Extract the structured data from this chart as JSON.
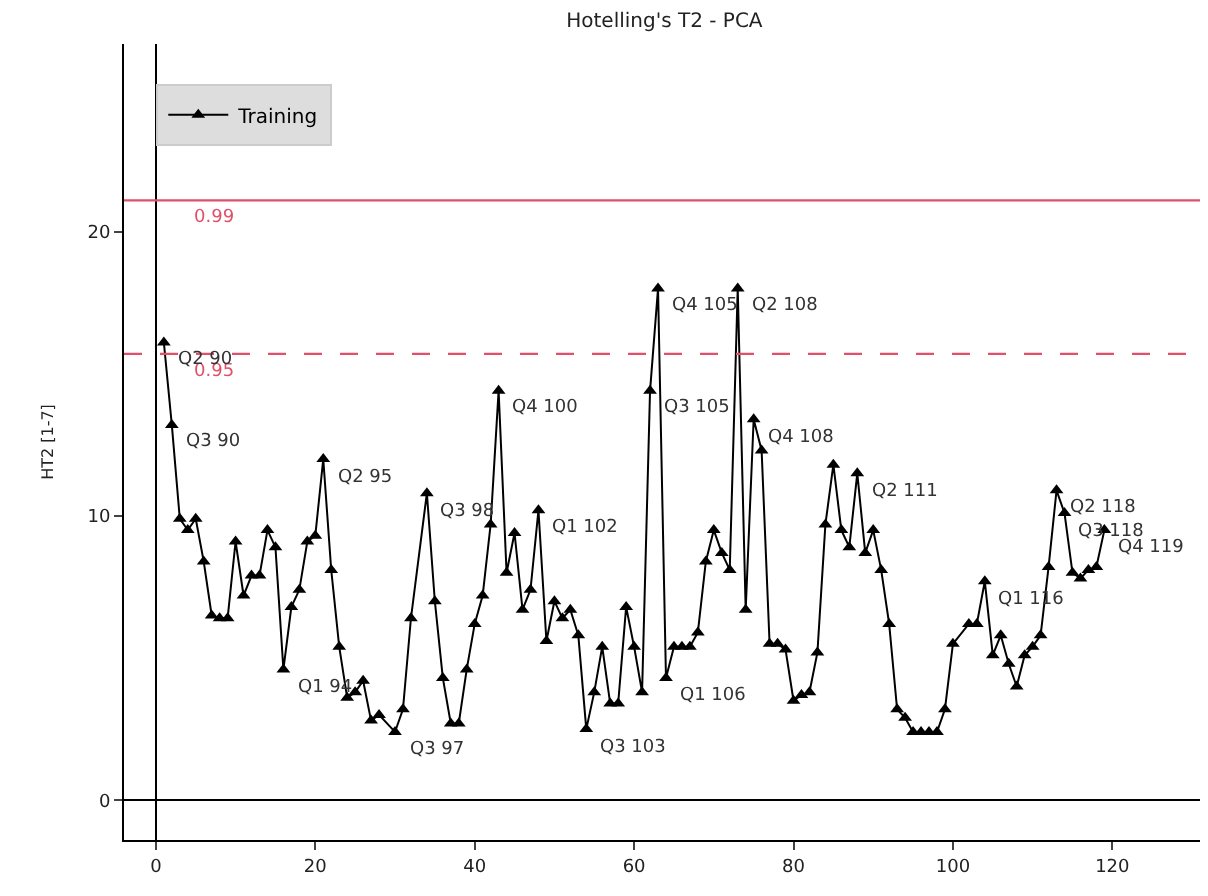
{
  "chart_data": {
    "type": "line",
    "title": "Hotelling's T2 - PCA",
    "ylabel": "HT2 [1-7]",
    "series": [
      {
        "name": "Training",
        "color": "#000000",
        "x": [
          1,
          2,
          3,
          4,
          5,
          6,
          7,
          8,
          9,
          10,
          11,
          12,
          13,
          14,
          15,
          16,
          17,
          18,
          19,
          20,
          21,
          22,
          23,
          24,
          25,
          26,
          27,
          28,
          30,
          31,
          32,
          34,
          35,
          36,
          37,
          38,
          39,
          40,
          41,
          42,
          43,
          44,
          45,
          46,
          47,
          48,
          49,
          50,
          51,
          52,
          53,
          54,
          55,
          56,
          57,
          58,
          59,
          60,
          61,
          62,
          63,
          64,
          65,
          66,
          67,
          68,
          69,
          70,
          71,
          72,
          73,
          74,
          75,
          76,
          77,
          78,
          79,
          80,
          81,
          82,
          83,
          84,
          85,
          86,
          87,
          88,
          89,
          90,
          91,
          92,
          93,
          94,
          95,
          96,
          97,
          98,
          99,
          100,
          102,
          103,
          104,
          105,
          106,
          107,
          108,
          109,
          110,
          111,
          112,
          113,
          114,
          115,
          116,
          117,
          118,
          119
        ],
        "values": [
          16.1,
          13.2,
          9.9,
          9.5,
          9.9,
          8.4,
          6.5,
          6.4,
          6.4,
          9.1,
          7.2,
          7.9,
          7.9,
          9.5,
          8.9,
          4.6,
          6.8,
          7.4,
          9.1,
          9.3,
          12.0,
          8.1,
          5.4,
          3.6,
          3.8,
          4.2,
          2.8,
          3.0,
          2.4,
          3.2,
          6.4,
          10.8,
          7.0,
          4.3,
          2.7,
          2.7,
          4.6,
          6.2,
          7.2,
          9.7,
          14.4,
          8.0,
          9.4,
          6.7,
          7.4,
          10.2,
          5.6,
          7.0,
          6.4,
          6.7,
          5.8,
          2.5,
          3.8,
          5.4,
          3.4,
          3.4,
          6.8,
          5.4,
          3.8,
          14.4,
          18.0,
          4.3,
          5.4,
          5.4,
          5.4,
          5.9,
          8.4,
          9.5,
          8.7,
          8.1,
          18.0,
          6.7,
          13.4,
          12.3,
          5.5,
          5.5,
          5.3,
          3.5,
          3.7,
          3.8,
          5.2,
          9.7,
          11.8,
          9.5,
          8.9,
          11.5,
          8.7,
          9.5,
          8.1,
          6.2,
          3.2,
          2.9,
          2.4,
          2.4,
          2.4,
          2.4,
          3.2,
          5.5,
          6.2,
          6.2,
          7.7,
          5.1,
          5.8,
          4.8,
          4.0,
          5.1,
          5.4,
          5.8,
          8.2,
          10.9,
          10.1,
          8.0,
          7.8,
          8.1,
          8.2,
          9.5
        ]
      }
    ],
    "marker": "triangle",
    "line_style": "solid",
    "legend": "top left",
    "xlim": [
      -4,
      131
    ],
    "ylim": [
      -1.4,
      26.6
    ],
    "xticks": [
      0,
      20,
      40,
      60,
      80,
      100,
      120
    ],
    "yticks": [
      0,
      10,
      20
    ],
    "ref_lines": [
      {
        "axis": "y",
        "value": 21.1,
        "color": "#e0506a",
        "line_style": "solid"
      },
      {
        "axis": "y",
        "value": 15.7,
        "color": "#e0506a",
        "line_style": "dashed"
      }
    ],
    "annotations": [
      {
        "text": "0.99",
        "x": 3,
        "y": 21.1
      },
      {
        "text": "0.95",
        "x": 3,
        "y": 15.7
      },
      {
        "text": "Q2 90",
        "x": 1,
        "y": 16.1
      },
      {
        "text": "Q3 90",
        "x": 2,
        "y": 13.2
      },
      {
        "text": "Q2 95",
        "x": 21,
        "y": 12.0
      },
      {
        "text": "Q1 94",
        "x": 16,
        "y": 4.6
      },
      {
        "text": "Q3 97",
        "x": 30,
        "y": 2.4
      },
      {
        "text": "Q3 98",
        "x": 34,
        "y": 10.8
      },
      {
        "text": "Q4 100",
        "x": 43,
        "y": 14.4
      },
      {
        "text": "Q1 102",
        "x": 48,
        "y": 10.2
      },
      {
        "text": "Q3 103",
        "x": 54,
        "y": 2.5
      },
      {
        "text": "Q3 105",
        "x": 62,
        "y": 14.4
      },
      {
        "text": "Q4 105",
        "x": 63,
        "y": 18.0
      },
      {
        "text": "Q2 108",
        "x": 73,
        "y": 18.0
      },
      {
        "text": "Q4 108",
        "x": 75,
        "y": 13.4
      },
      {
        "text": "Q1 106",
        "x": 64,
        "y": 4.3
      },
      {
        "text": "Q2 111",
        "x": 88,
        "y": 11.5
      },
      {
        "text": "Q1 116",
        "x": 104,
        "y": 7.7
      },
      {
        "text": "Q2 118",
        "x": 113,
        "y": 10.9
      },
      {
        "text": "Q3 118",
        "x": 114,
        "y": 10.1
      },
      {
        "text": "Q4 119",
        "x": 119,
        "y": 9.5
      }
    ]
  }
}
